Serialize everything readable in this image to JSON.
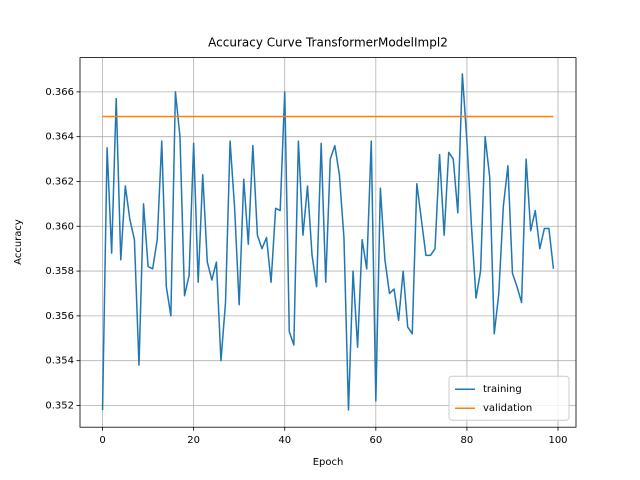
{
  "chart_data": {
    "type": "line",
    "title": "Accuracy Curve TransformerModelImpl2",
    "xlabel": "Epoch",
    "ylabel": "Accuracy",
    "x": [
      0,
      1,
      2,
      3,
      4,
      5,
      6,
      7,
      8,
      9,
      10,
      11,
      12,
      13,
      14,
      15,
      16,
      17,
      18,
      19,
      20,
      21,
      22,
      23,
      24,
      25,
      26,
      27,
      28,
      29,
      30,
      31,
      32,
      33,
      34,
      35,
      36,
      37,
      38,
      39,
      40,
      41,
      42,
      43,
      44,
      45,
      46,
      47,
      48,
      49,
      50,
      51,
      52,
      53,
      54,
      55,
      56,
      57,
      58,
      59,
      60,
      61,
      62,
      63,
      64,
      65,
      66,
      67,
      68,
      69,
      70,
      71,
      72,
      73,
      74,
      75,
      76,
      77,
      78,
      79,
      80,
      81,
      82,
      83,
      84,
      85,
      86,
      87,
      88,
      89,
      90,
      91,
      92,
      93,
      94,
      95,
      96,
      97,
      98,
      99
    ],
    "series": [
      {
        "name": "training",
        "color": "#1f77b4",
        "values": [
          0.3518,
          0.3635,
          0.3588,
          0.3657,
          0.3585,
          0.3618,
          0.3603,
          0.3594,
          0.3538,
          0.361,
          0.3582,
          0.3581,
          0.3594,
          0.3638,
          0.3573,
          0.356,
          0.366,
          0.364,
          0.3569,
          0.3578,
          0.3637,
          0.3575,
          0.3623,
          0.3584,
          0.3576,
          0.3584,
          0.354,
          0.3566,
          0.3638,
          0.3608,
          0.3565,
          0.3621,
          0.3592,
          0.3636,
          0.3596,
          0.359,
          0.3595,
          0.3575,
          0.3608,
          0.3607,
          0.366,
          0.3553,
          0.3547,
          0.3638,
          0.3596,
          0.3618,
          0.3587,
          0.3573,
          0.3637,
          0.3575,
          0.363,
          0.3636,
          0.3623,
          0.3595,
          0.3518,
          0.358,
          0.3546,
          0.3594,
          0.3581,
          0.3638,
          0.3522,
          0.3617,
          0.3585,
          0.357,
          0.3572,
          0.3558,
          0.358,
          0.3555,
          0.3552,
          0.3619,
          0.3603,
          0.3587,
          0.3587,
          0.359,
          0.3632,
          0.3596,
          0.3633,
          0.363,
          0.3606,
          0.3668,
          0.3638,
          0.36,
          0.3568,
          0.358,
          0.364,
          0.3622,
          0.3552,
          0.357,
          0.3609,
          0.3627,
          0.3579,
          0.3573,
          0.3566,
          0.363,
          0.3598,
          0.3607,
          0.359,
          0.3599,
          0.3599,
          0.3581
        ]
      },
      {
        "name": "validation",
        "color": "#ff7f0e",
        "values": [
          0.3649,
          0.3649,
          0.3649,
          0.3649,
          0.3649,
          0.3649,
          0.3649,
          0.3649,
          0.3649,
          0.3649,
          0.3649,
          0.3649,
          0.3649,
          0.3649,
          0.3649,
          0.3649,
          0.3649,
          0.3649,
          0.3649,
          0.3649,
          0.3649,
          0.3649,
          0.3649,
          0.3649,
          0.3649,
          0.3649,
          0.3649,
          0.3649,
          0.3649,
          0.3649,
          0.3649,
          0.3649,
          0.3649,
          0.3649,
          0.3649,
          0.3649,
          0.3649,
          0.3649,
          0.3649,
          0.3649,
          0.3649,
          0.3649,
          0.3649,
          0.3649,
          0.3649,
          0.3649,
          0.3649,
          0.3649,
          0.3649,
          0.3649,
          0.3649,
          0.3649,
          0.3649,
          0.3649,
          0.3649,
          0.3649,
          0.3649,
          0.3649,
          0.3649,
          0.3649,
          0.3649,
          0.3649,
          0.3649,
          0.3649,
          0.3649,
          0.3649,
          0.3649,
          0.3649,
          0.3649,
          0.3649,
          0.3649,
          0.3649,
          0.3649,
          0.3649,
          0.3649,
          0.3649,
          0.3649,
          0.3649,
          0.3649,
          0.3649,
          0.3649,
          0.3649,
          0.3649,
          0.3649,
          0.3649,
          0.3649,
          0.3649,
          0.3649,
          0.3649,
          0.3649,
          0.3649,
          0.3649,
          0.3649,
          0.3649,
          0.3649,
          0.3649,
          0.3649,
          0.3649,
          0.3649,
          0.3649
        ]
      }
    ],
    "xlim": [
      -4.95,
      103.95
    ],
    "xticks": [
      0,
      20,
      40,
      60,
      80,
      100
    ],
    "ylim": [
      0.35103,
      0.36753
    ],
    "yticks": [
      0.352,
      0.354,
      0.356,
      0.358,
      {
        "value": 0.36,
        "label": "0.360"
      },
      0.362,
      0.364,
      0.366
    ],
    "grid": true,
    "legend": "lower right"
  }
}
